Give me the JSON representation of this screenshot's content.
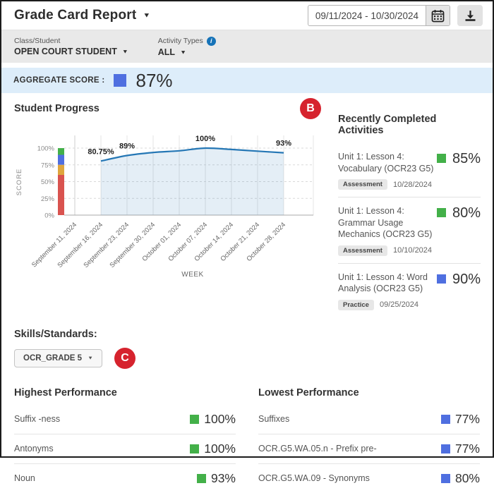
{
  "header": {
    "title": "Grade Card Report",
    "date_range": "09/11/2024 - 10/30/2024"
  },
  "icons": {
    "caret": "▼",
    "info_glyph": "i",
    "calendar": "calendar-grid",
    "download": "arrow-down-into-tray"
  },
  "filters": {
    "class_student": {
      "label": "Class/Student",
      "value": "OPEN COURT STUDENT"
    },
    "activity_types": {
      "label": "Activity Types",
      "value": "ALL"
    }
  },
  "aggregate": {
    "label": "AGGREGATE SCORE :",
    "value": "87%",
    "square_color": "#4f6fe0",
    "bg_color": "#ddedfa"
  },
  "annotations": {
    "b_label": "B",
    "c_label": "C",
    "badge_color": "#d6232e"
  },
  "chart_data": {
    "type": "area",
    "title": "Student Progress",
    "xlabel": "WEEK",
    "ylabel": "SCORE",
    "ylim": [
      0,
      100
    ],
    "y_ticks": [
      "0%",
      "25%",
      "50%",
      "75%",
      "100%"
    ],
    "grid": true,
    "categories": [
      "September 11, 2024",
      "September 16, 2024",
      "September 23, 2024",
      "September 30, 2024",
      "October 01, 2024",
      "October 07, 2024",
      "October 14, 2024",
      "October 21, 2024",
      "October 28, 2024"
    ],
    "series": [
      {
        "name": "score",
        "values": [
          null,
          80.75,
          89,
          93.5,
          96,
          100,
          98,
          95.5,
          93
        ]
      }
    ],
    "point_labels": [
      null,
      "80.75%",
      "89%",
      null,
      null,
      "100%",
      null,
      null,
      "93%"
    ],
    "line_color": "#2577b5",
    "fill_color": "rgba(37,119,181,0.12)",
    "score_bands": [
      {
        "range": [
          90,
          100
        ],
        "color": "#43b049"
      },
      {
        "range": [
          75,
          90
        ],
        "color": "#4f6fe0"
      },
      {
        "range": [
          60,
          75
        ],
        "color": "#dfa63d"
      },
      {
        "range": [
          0,
          60
        ],
        "color": "#d9534f"
      }
    ]
  },
  "recent": {
    "heading": "Recently Completed Activities",
    "items": [
      {
        "title": "Unit 1: Lesson 4: Vocabulary (OCR23 G5)",
        "type": "Assessment",
        "date": "10/28/2024",
        "score": "85%",
        "color": "#43b049"
      },
      {
        "title": "Unit 1: Lesson 4: Grammar Usage Mechanics (OCR23 G5)",
        "type": "Assessment",
        "date": "10/10/2024",
        "score": "80%",
        "color": "#43b049"
      },
      {
        "title": "Unit 1: Lesson 4: Word Analysis (OCR23 G5)",
        "type": "Practice",
        "date": "09/25/2024",
        "score": "90%",
        "color": "#4f6fe0"
      }
    ]
  },
  "skills": {
    "heading": "Skills/Standards:",
    "value": "OCR_GRADE 5"
  },
  "performance": {
    "highest": {
      "heading": "Highest Performance",
      "rows": [
        {
          "label": "Suffix -ness",
          "value": "100%",
          "color": "#43b049"
        },
        {
          "label": "Antonyms",
          "value": "100%",
          "color": "#43b049"
        },
        {
          "label": "Noun",
          "value": "93%",
          "color": "#43b049"
        }
      ]
    },
    "lowest": {
      "heading": "Lowest Performance",
      "rows": [
        {
          "label": "Suffixes",
          "value": "77%",
          "color": "#4f6fe0"
        },
        {
          "label": "OCR.G5.WA.05.n - Prefix pre-",
          "value": "77%",
          "color": "#4f6fe0"
        },
        {
          "label": "OCR.G5.WA.09 - Synonyms",
          "value": "80%",
          "color": "#4f6fe0"
        }
      ]
    }
  }
}
